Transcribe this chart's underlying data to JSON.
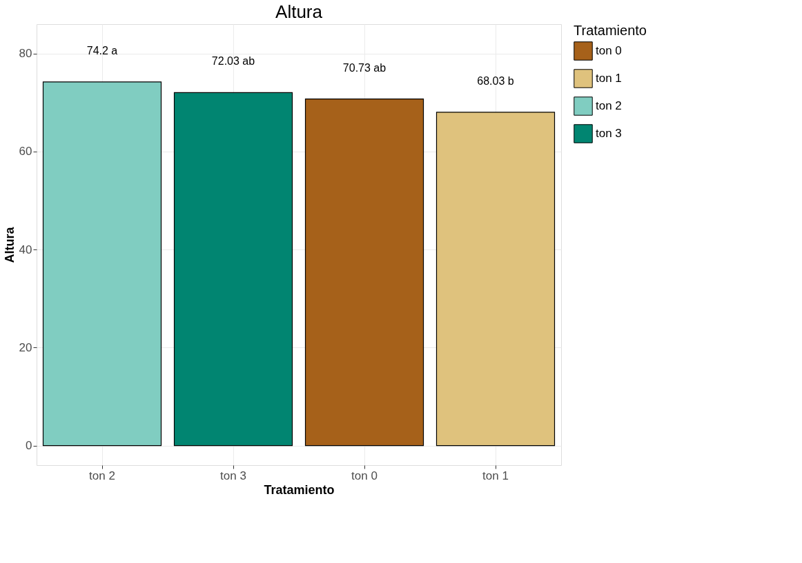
{
  "chart_data": {
    "type": "bar",
    "title": "Altura",
    "xlabel": "Tratamiento",
    "ylabel": "Altura",
    "legend_title": "Tratamiento",
    "categories": [
      "ton 2",
      "ton 3",
      "ton 0",
      "ton 1"
    ],
    "series": [
      {
        "name": "ton 0",
        "color": "#a6611a",
        "values": [
          null,
          null,
          70.73,
          null
        ],
        "value_labels": [
          null,
          null,
          "70.73 ab",
          null
        ]
      },
      {
        "name": "ton 1",
        "color": "#dfc27d",
        "values": [
          null,
          null,
          null,
          68.03
        ],
        "value_labels": [
          null,
          null,
          null,
          "68.03 b"
        ]
      },
      {
        "name": "ton 2",
        "color": "#80cdc1",
        "values": [
          74.2,
          null,
          null,
          null
        ],
        "value_labels": [
          "74.2 a",
          null,
          null,
          null
        ]
      },
      {
        "name": "ton 3",
        "color": "#018571",
        "values": [
          null,
          72.03,
          null,
          null
        ],
        "value_labels": [
          null,
          "72.03 ab",
          null,
          null
        ]
      }
    ],
    "ylim": [
      -4,
      86
    ],
    "yticks": [
      0,
      20,
      40,
      60,
      80
    ],
    "grid": true,
    "legend": "right"
  }
}
